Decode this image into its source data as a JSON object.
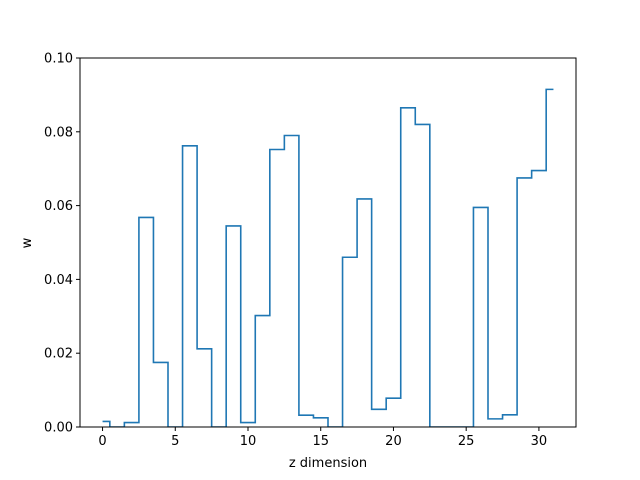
{
  "chart_data": {
    "type": "line",
    "style": "step",
    "xlabel": "z dimension",
    "ylabel": "w",
    "xlim": [
      -1.55,
      32.55
    ],
    "ylim": [
      0.0,
      0.1
    ],
    "xticks": [
      0,
      5,
      10,
      15,
      20,
      25,
      30
    ],
    "yticks": [
      0.0,
      0.02,
      0.04,
      0.06,
      0.08,
      0.1
    ],
    "xtick_labels": [
      "0",
      "5",
      "10",
      "15",
      "20",
      "25",
      "30"
    ],
    "ytick_labels": [
      "0.00",
      "0.02",
      "0.04",
      "0.06",
      "0.08",
      "0.10"
    ],
    "grid": false,
    "line_color": "#1f77b4",
    "x": [
      0,
      1,
      2,
      3,
      4,
      5,
      6,
      7,
      8,
      9,
      10,
      11,
      12,
      13,
      14,
      15,
      16,
      17,
      18,
      19,
      20,
      21,
      22,
      23,
      24,
      25,
      26,
      27,
      28,
      29,
      30,
      31
    ],
    "values": [
      0.0015,
      0.0,
      0.0012,
      0.0568,
      0.0175,
      0.0,
      0.0762,
      0.0212,
      0.0,
      0.0545,
      0.0012,
      0.0302,
      0.0752,
      0.079,
      0.0032,
      0.0025,
      0.0,
      0.046,
      0.0618,
      0.0048,
      0.0078,
      0.0865,
      0.082,
      0.0,
      0.0,
      0.0,
      0.0595,
      0.0022,
      0.0033,
      0.0675,
      0.0695,
      0.0915
    ]
  }
}
